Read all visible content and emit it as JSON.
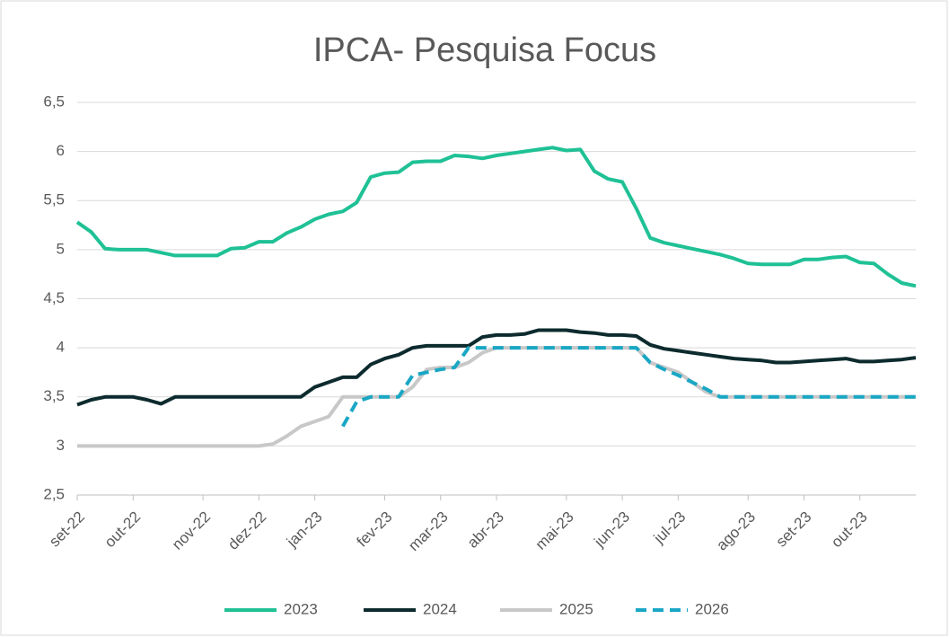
{
  "chart_data": {
    "type": "line",
    "title": "IPCA- Pesquisa Focus",
    "categories": [
      "set-22",
      null,
      null,
      null,
      "out-22",
      null,
      null,
      null,
      null,
      "nov-22",
      null,
      null,
      null,
      "dez-22",
      null,
      null,
      null,
      "jan-23",
      null,
      null,
      null,
      null,
      "fev-23",
      null,
      null,
      null,
      "mar-23",
      null,
      null,
      null,
      "abr-23",
      null,
      null,
      null,
      null,
      "mai-23",
      null,
      null,
      null,
      "jun-23",
      null,
      null,
      null,
      "jul-23",
      null,
      null,
      null,
      null,
      "ago-23",
      null,
      null,
      null,
      "set-23",
      null,
      null,
      null,
      "out-23",
      null,
      null,
      null,
      null
    ],
    "series": [
      {
        "name": "2023",
        "color": "#1fc195",
        "dashed": false,
        "values": [
          5.28,
          5.18,
          5.01,
          5.0,
          5.0,
          5.0,
          4.97,
          4.94,
          4.94,
          4.94,
          4.94,
          5.01,
          5.02,
          5.08,
          5.08,
          5.17,
          5.23,
          5.31,
          5.36,
          5.39,
          5.48,
          5.74,
          5.78,
          5.79,
          5.89,
          5.9,
          5.9,
          5.96,
          5.95,
          5.93,
          5.96,
          5.98,
          6.0,
          6.02,
          6.04,
          6.01,
          6.02,
          5.8,
          5.72,
          5.69,
          5.42,
          5.12,
          5.07,
          5.04,
          5.01,
          4.98,
          4.95,
          4.91,
          4.86,
          4.85,
          4.85,
          4.85,
          4.9,
          4.9,
          4.92,
          4.93,
          4.87,
          4.86,
          4.75,
          4.66,
          4.63
        ]
      },
      {
        "name": "2024",
        "color": "#0d2b2e",
        "dashed": false,
        "values": [
          3.42,
          3.47,
          3.5,
          3.5,
          3.5,
          3.47,
          3.43,
          3.5,
          3.5,
          3.5,
          3.5,
          3.5,
          3.5,
          3.5,
          3.5,
          3.5,
          3.5,
          3.6,
          3.65,
          3.7,
          3.7,
          3.83,
          3.89,
          3.93,
          4.0,
          4.02,
          4.02,
          4.02,
          4.02,
          4.11,
          4.13,
          4.13,
          4.14,
          4.18,
          4.18,
          4.18,
          4.16,
          4.15,
          4.13,
          4.13,
          4.12,
          4.03,
          3.99,
          3.97,
          3.95,
          3.93,
          3.91,
          3.89,
          3.88,
          3.87,
          3.85,
          3.85,
          3.86,
          3.87,
          3.88,
          3.89,
          3.86,
          3.86,
          3.87,
          3.88,
          3.9
        ]
      },
      {
        "name": "2025",
        "color": "#c8c8c8",
        "dashed": false,
        "values": [
          3,
          3,
          3,
          3,
          3,
          3,
          3,
          3,
          3,
          3,
          3,
          3,
          3,
          3,
          3.02,
          3.1,
          3.2,
          3.25,
          3.3,
          3.5,
          3.5,
          3.5,
          3.5,
          3.5,
          3.6,
          3.78,
          3.8,
          3.8,
          3.85,
          3.95,
          4,
          4,
          4,
          4,
          4,
          4,
          4,
          4,
          4,
          4,
          4,
          3.85,
          3.8,
          3.75,
          3.65,
          3.55,
          3.5,
          3.5,
          3.5,
          3.5,
          3.5,
          3.5,
          3.5,
          3.5,
          3.5,
          3.5,
          3.5,
          3.5,
          3.5,
          3.5,
          3.5
        ]
      },
      {
        "name": "2026",
        "color": "#19a7c4",
        "dashed": true,
        "values": [
          null,
          null,
          null,
          null,
          null,
          null,
          null,
          null,
          null,
          null,
          null,
          null,
          null,
          null,
          null,
          null,
          null,
          null,
          null,
          3.2,
          3.45,
          3.5,
          3.5,
          3.5,
          3.72,
          3.75,
          3.78,
          3.8,
          4,
          4,
          4,
          4,
          4,
          4,
          4,
          4,
          4,
          4,
          4,
          4,
          4,
          3.85,
          3.78,
          3.72,
          3.65,
          3.58,
          3.5,
          3.5,
          3.5,
          3.5,
          3.5,
          3.5,
          3.5,
          3.5,
          3.5,
          3.5,
          3.5,
          3.5,
          3.5,
          3.5,
          3.5
        ]
      }
    ],
    "ylim": [
      2.5,
      6.5
    ],
    "yticks": [
      {
        "value": 2.5,
        "label": "2,5"
      },
      3,
      {
        "value": 3.5,
        "label": "3,5"
      },
      4,
      {
        "value": 4.5,
        "label": "4,5"
      },
      5,
      {
        "value": 5.5,
        "label": "5,5"
      },
      6,
      {
        "value": 6.5,
        "label": "6,5"
      }
    ],
    "grid": true,
    "legend": "bottom"
  }
}
